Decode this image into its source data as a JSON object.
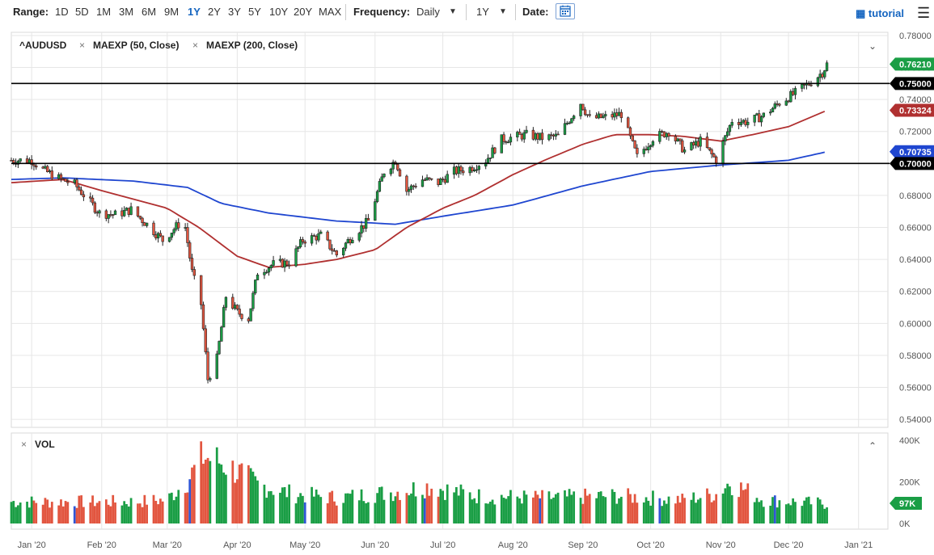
{
  "toolbar": {
    "range_label": "Range:",
    "ranges": [
      "1D",
      "5D",
      "1M",
      "3M",
      "6M",
      "9M",
      "1Y",
      "2Y",
      "3Y",
      "5Y",
      "10Y",
      "20Y",
      "MAX"
    ],
    "active_range": "1Y",
    "frequency_label": "Frequency:",
    "frequency_value": "Daily",
    "period_value": "1Y",
    "date_label": "Date:",
    "tutorial_label": "tutorial"
  },
  "legend": {
    "symbol": "^AUDUSD",
    "ma50": "MAEXP (50, Close)",
    "ma200": "MAEXP (200, Close)",
    "vol": "VOL"
  },
  "colors": {
    "up": "#1a9e45",
    "down": "#e2553f",
    "ma50": "#b03030",
    "ma200": "#1f46d0",
    "last_price": "#1a9e45",
    "hline_tag": "#000000",
    "vol_blue": "#2f56d6"
  },
  "chart_data": [
    {
      "type": "candlestick",
      "series_name": "^AUDUSD",
      "x_ticks": [
        "Jan '20",
        "Feb '20",
        "Mar '20",
        "Apr '20",
        "May '20",
        "Jun '20",
        "Jul '20",
        "Aug '20",
        "Sep '20",
        "Oct '20",
        "Nov '20",
        "Dec '20",
        "Jan '21"
      ],
      "y_ticks": [
        "0.78000",
        "0.76000",
        "0.74000",
        "0.72000",
        "0.70000",
        "0.68000",
        "0.66000",
        "0.64000",
        "0.62000",
        "0.60000",
        "0.58000",
        "0.56000",
        "0.54000"
      ],
      "ylim": [
        0.535,
        0.782
      ],
      "xlim": [
        "2019-12-23",
        "2021-01-14"
      ],
      "grid": true,
      "ohlc_anchors": [
        [
          "2020-01-01",
          0.702
        ],
        [
          "2020-01-06",
          0.696
        ],
        [
          "2020-01-14",
          0.69
        ],
        [
          "2020-01-20",
          0.687
        ],
        [
          "2020-01-31",
          0.669
        ],
        [
          "2020-02-07",
          0.668
        ],
        [
          "2020-02-14",
          0.671
        ],
        [
          "2020-02-21",
          0.662
        ],
        [
          "2020-02-28",
          0.652
        ],
        [
          "2020-03-06",
          0.662
        ],
        [
          "2020-03-09",
          0.66
        ],
        [
          "2020-03-12",
          0.632
        ],
        [
          "2020-03-16",
          0.612
        ],
        [
          "2020-03-19",
          0.565
        ],
        [
          "2020-03-23",
          0.578
        ],
        [
          "2020-03-27",
          0.617
        ],
        [
          "2020-04-01",
          0.607
        ],
        [
          "2020-04-06",
          0.603
        ],
        [
          "2020-04-10",
          0.632
        ],
        [
          "2020-04-17",
          0.637
        ],
        [
          "2020-04-24",
          0.638
        ],
        [
          "2020-04-30",
          0.652
        ],
        [
          "2020-05-08",
          0.655
        ],
        [
          "2020-05-15",
          0.643
        ],
        [
          "2020-05-22",
          0.655
        ],
        [
          "2020-05-29",
          0.664
        ],
        [
          "2020-06-05",
          0.695
        ],
        [
          "2020-06-10",
          0.702
        ],
        [
          "2020-06-15",
          0.683
        ],
        [
          "2020-06-22",
          0.69
        ],
        [
          "2020-06-29",
          0.688
        ],
        [
          "2020-07-06",
          0.695
        ],
        [
          "2020-07-13",
          0.697
        ],
        [
          "2020-07-20",
          0.702
        ],
        [
          "2020-07-27",
          0.715
        ],
        [
          "2020-08-07",
          0.718
        ],
        [
          "2020-08-14",
          0.716
        ],
        [
          "2020-08-21",
          0.717
        ],
        [
          "2020-08-31",
          0.738
        ],
        [
          "2020-09-04",
          0.728
        ],
        [
          "2020-09-11",
          0.729
        ],
        [
          "2020-09-18",
          0.731
        ],
        [
          "2020-09-25",
          0.704
        ],
        [
          "2020-10-02",
          0.716
        ],
        [
          "2020-10-09",
          0.72
        ],
        [
          "2020-10-16",
          0.708
        ],
        [
          "2020-10-23",
          0.714
        ],
        [
          "2020-10-30",
          0.702
        ],
        [
          "2020-11-06",
          0.727
        ],
        [
          "2020-11-13",
          0.726
        ],
        [
          "2020-11-20",
          0.73
        ],
        [
          "2020-11-27",
          0.738
        ],
        [
          "2020-12-04",
          0.744
        ],
        [
          "2020-12-11",
          0.751
        ],
        [
          "2020-12-16",
          0.757
        ],
        [
          "2020-12-18",
          0.762
        ]
      ],
      "ma50_anchors": [
        [
          "2019-12-23",
          0.688
        ],
        [
          "2020-01-15",
          0.69
        ],
        [
          "2020-02-01",
          0.683
        ],
        [
          "2020-03-01",
          0.672
        ],
        [
          "2020-03-15",
          0.66
        ],
        [
          "2020-04-01",
          0.642
        ],
        [
          "2020-04-15",
          0.635
        ],
        [
          "2020-05-01",
          0.637
        ],
        [
          "2020-05-15",
          0.64
        ],
        [
          "2020-06-01",
          0.646
        ],
        [
          "2020-06-15",
          0.66
        ],
        [
          "2020-07-01",
          0.672
        ],
        [
          "2020-07-15",
          0.68
        ],
        [
          "2020-08-01",
          0.693
        ],
        [
          "2020-08-15",
          0.702
        ],
        [
          "2020-09-01",
          0.712
        ],
        [
          "2020-09-15",
          0.718
        ],
        [
          "2020-10-01",
          0.718
        ],
        [
          "2020-10-15",
          0.717
        ],
        [
          "2020-11-01",
          0.714
        ],
        [
          "2020-11-15",
          0.718
        ],
        [
          "2020-12-01",
          0.723
        ],
        [
          "2020-12-18",
          0.7332
        ]
      ],
      "ma200_anchors": [
        [
          "2019-12-23",
          0.69
        ],
        [
          "2020-01-15",
          0.691
        ],
        [
          "2020-02-15",
          0.689
        ],
        [
          "2020-03-10",
          0.685
        ],
        [
          "2020-03-25",
          0.675
        ],
        [
          "2020-04-15",
          0.669
        ],
        [
          "2020-05-15",
          0.664
        ],
        [
          "2020-06-10",
          0.662
        ],
        [
          "2020-07-01",
          0.667
        ],
        [
          "2020-08-01",
          0.674
        ],
        [
          "2020-09-01",
          0.686
        ],
        [
          "2020-10-01",
          0.695
        ],
        [
          "2020-11-01",
          0.699
        ],
        [
          "2020-12-01",
          0.702
        ],
        [
          "2020-12-18",
          0.70735
        ]
      ],
      "horizontal_lines": [
        0.75,
        0.7
      ],
      "price_tags": [
        {
          "label": "0.76210",
          "value": 0.7621,
          "role": "last"
        },
        {
          "label": "0.75000",
          "value": 0.75,
          "role": "hline"
        },
        {
          "label": "0.73324",
          "value": 0.73324,
          "role": "ma50"
        },
        {
          "label": "0.70735",
          "value": 0.70735,
          "role": "ma200"
        },
        {
          "label": "0.70000",
          "value": 0.7,
          "role": "hline"
        }
      ]
    },
    {
      "type": "bar",
      "series_name": "VOL",
      "y_ticks": [
        "400K",
        "200K",
        "0K"
      ],
      "ylim": [
        0,
        400000
      ],
      "last_value_label": "97K",
      "last_value": 97000,
      "anchors": [
        [
          "2019-12-23",
          110000
        ],
        [
          "2020-02-15",
          110000
        ],
        [
          "2020-03-01",
          120000
        ],
        [
          "2020-03-10",
          220000
        ],
        [
          "2020-03-17",
          340000
        ],
        [
          "2020-03-25",
          310000
        ],
        [
          "2020-04-10",
          200000
        ],
        [
          "2020-04-25",
          150000
        ],
        [
          "2020-05-15",
          130000
        ],
        [
          "2020-06-10",
          160000
        ],
        [
          "2020-06-25",
          190000
        ],
        [
          "2020-07-15",
          140000
        ],
        [
          "2020-08-15",
          130000
        ],
        [
          "2020-09-15",
          140000
        ],
        [
          "2020-10-15",
          120000
        ],
        [
          "2020-10-30",
          150000
        ],
        [
          "2020-11-05",
          210000
        ],
        [
          "2020-11-20",
          120000
        ],
        [
          "2020-12-18",
          100000
        ]
      ]
    }
  ]
}
